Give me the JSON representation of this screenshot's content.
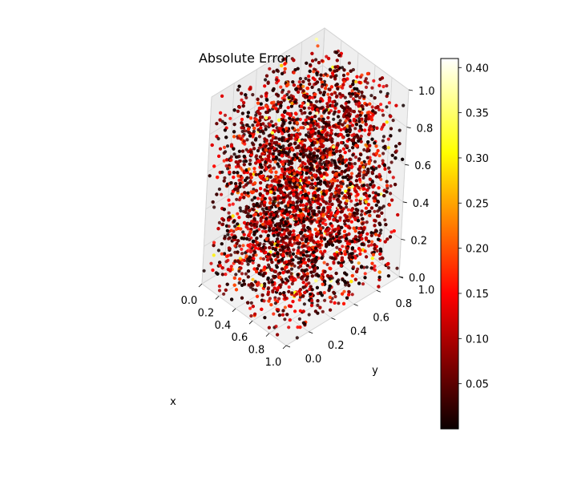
{
  "chart_data": {
    "type": "scatter",
    "subtype": "3d-scatter",
    "title": "Absolute Error",
    "xlabel": "x",
    "ylabel": "y",
    "zlabel": "",
    "xlim": [
      0,
      1
    ],
    "ylim": [
      0,
      1
    ],
    "zlim": [
      0,
      1
    ],
    "x_ticks": [
      "0.0",
      "0.2",
      "0.4",
      "0.6",
      "0.8",
      "1.0"
    ],
    "y_ticks": [
      "0.0",
      "0.2",
      "0.4",
      "0.6",
      "0.8",
      "1.0"
    ],
    "z_ticks": [
      "0.0",
      "0.2",
      "0.4",
      "0.6",
      "0.8",
      "1.0"
    ],
    "colormap": "hot",
    "color_range": [
      0.0,
      0.41
    ],
    "colorbar_ticks": [
      "0.05",
      "0.10",
      "0.15",
      "0.20",
      "0.25",
      "0.30",
      "0.35",
      "0.40"
    ],
    "grid": true,
    "point_count_estimate": 8000,
    "note_values": "Points fill the unit cube; error values mostly 0.0–0.2 with sparse yellow outliers up to about 0.4"
  }
}
